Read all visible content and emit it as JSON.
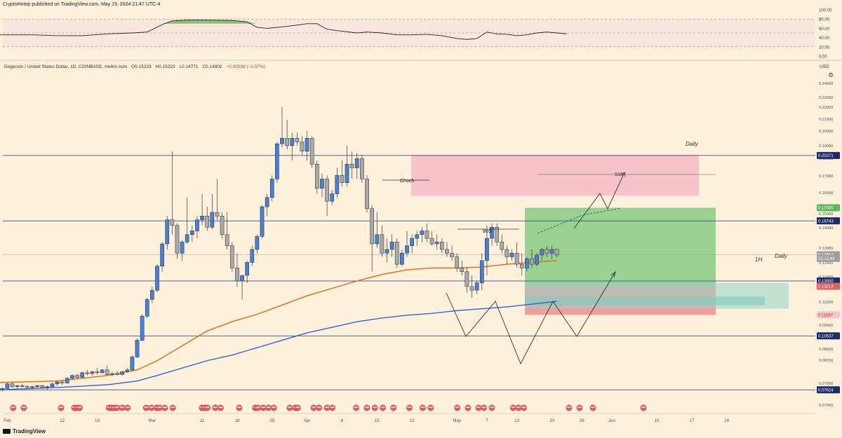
{
  "header": {
    "publisher": "CryptoHotep published on TradingView.com, May 19, 2024 21:47 UTC-4"
  },
  "symbol": {
    "name": "Dogecoin / United States Dollar, 1D, COINBASE, Heikin Ashi",
    "open": "O0.15223",
    "high": "H0.15223",
    "low": "L0.14771",
    "close": "C0.14902",
    "change": "−0.00238 (−1.57%)"
  },
  "currency": "USD",
  "brand": "TradingView",
  "colors": {
    "background": "#fef1dc",
    "up": "#4a7fd6",
    "down": "#a9a9a9",
    "ema_orange": "#e06a10",
    "ema_blue": "#2f62e0",
    "hline": "#3a4d8c",
    "supply_zone": "#f6b2c4",
    "green_box": "#6fc36f",
    "red_box": "#f08a8a",
    "teal_box": "#8fd3c9"
  },
  "chart_data": {
    "type": "candlestick",
    "subtype": "heikin-ashi",
    "ylim": [
      0.07,
      0.245
    ],
    "y_ticks": [
      "0.24000",
      "0.23000",
      "0.22000",
      "0.21000",
      "0.20000",
      "0.19000",
      "0.18000",
      "0.17000",
      "0.16000",
      "0.15000",
      "0.14000",
      "0.13000",
      "0.12400",
      "0.11600",
      "0.11200",
      "0.10200",
      "0.09800",
      "0.09400",
      "0.09000",
      "0.08600",
      "0.08250",
      "0.07900",
      "0.07300"
    ],
    "x_ticks": [
      {
        "label": "Feb",
        "day": 0
      },
      {
        "label": "12",
        "day": 11
      },
      {
        "label": "19",
        "day": 18
      },
      {
        "label": "Mar",
        "day": 29
      },
      {
        "label": "11",
        "day": 39
      },
      {
        "label": "18",
        "day": 46
      },
      {
        "label": "25",
        "day": 53
      },
      {
        "label": "Apr",
        "day": 60
      },
      {
        "label": "8",
        "day": 67
      },
      {
        "label": "15",
        "day": 74
      },
      {
        "label": "22",
        "day": 81
      },
      {
        "label": "May",
        "day": 90
      },
      {
        "label": "7",
        "day": 96
      },
      {
        "label": "13",
        "day": 102
      },
      {
        "label": "20",
        "day": 109
      },
      {
        "label": "26",
        "day": 115
      },
      {
        "label": "Jun",
        "day": 121
      },
      {
        "label": "10",
        "day": 130
      },
      {
        "label": "17",
        "day": 137
      },
      {
        "label": "24",
        "day": 144
      }
    ],
    "price_labels": [
      {
        "text": "0.20271",
        "value": 0.20271,
        "bg": "#1d2b6b"
      },
      {
        "text": "0.17450",
        "value": 0.1745,
        "bg": "#5cb85c"
      },
      {
        "text": "0.16743",
        "value": 0.16743,
        "bg": "#1d2b6b"
      },
      {
        "text": "0.14914",
        "value": 0.14914,
        "bg": "#9e9e9e"
      },
      {
        "text": "22:12:44",
        "value": 0.14714,
        "bg": "#9e9e9e"
      },
      {
        "text": "0.13500",
        "value": 0.135,
        "bg": "#1d2b6b"
      },
      {
        "text": "0.13214",
        "value": 0.13214,
        "bg": "#e06060"
      },
      {
        "text": "0.11667",
        "value": 0.11667,
        "bg": "#f3c6cc"
      },
      {
        "text": "0.10537",
        "value": 0.10537,
        "bg": "#1d2b6b"
      },
      {
        "text": "0.07624",
        "value": 0.07624,
        "bg": "#1d2b6b"
      }
    ],
    "horizontal_lines": [
      0.20271,
      0.16743,
      0.135,
      0.10537,
      0.07624
    ],
    "candles": [
      [
        -4,
        0.077,
        0.078,
        0.076,
        0.0775
      ],
      [
        -3,
        0.0775,
        0.078,
        0.076,
        0.0765
      ],
      [
        -2,
        0.0765,
        0.0775,
        0.0755,
        0.076
      ],
      [
        -1,
        0.076,
        0.0775,
        0.0755,
        0.077
      ],
      [
        0,
        0.077,
        0.08,
        0.0765,
        0.0795
      ],
      [
        1,
        0.0795,
        0.08,
        0.0775,
        0.078
      ],
      [
        2,
        0.078,
        0.079,
        0.077,
        0.0785
      ],
      [
        3,
        0.0785,
        0.0795,
        0.0775,
        0.078
      ],
      [
        4,
        0.078,
        0.079,
        0.077,
        0.0775
      ],
      [
        5,
        0.0775,
        0.0785,
        0.0765,
        0.078
      ],
      [
        6,
        0.078,
        0.079,
        0.077,
        0.0785
      ],
      [
        7,
        0.0785,
        0.079,
        0.077,
        0.0775
      ],
      [
        8,
        0.0775,
        0.0785,
        0.0765,
        0.078
      ],
      [
        9,
        0.078,
        0.08,
        0.0775,
        0.0795
      ],
      [
        10,
        0.0795,
        0.081,
        0.0785,
        0.0805
      ],
      [
        11,
        0.0805,
        0.0815,
        0.079,
        0.08
      ],
      [
        12,
        0.08,
        0.083,
        0.0795,
        0.0825
      ],
      [
        13,
        0.0825,
        0.0845,
        0.0815,
        0.084
      ],
      [
        14,
        0.084,
        0.085,
        0.082,
        0.083
      ],
      [
        15,
        0.083,
        0.086,
        0.0825,
        0.0855
      ],
      [
        16,
        0.0855,
        0.087,
        0.084,
        0.085
      ],
      [
        17,
        0.085,
        0.0865,
        0.084,
        0.086
      ],
      [
        18,
        0.086,
        0.088,
        0.0845,
        0.0855
      ],
      [
        19,
        0.0855,
        0.0875,
        0.0848,
        0.087
      ],
      [
        20,
        0.087,
        0.0895,
        0.084,
        0.0845
      ],
      [
        21,
        0.0845,
        0.086,
        0.0835,
        0.085
      ],
      [
        22,
        0.085,
        0.0865,
        0.084,
        0.0845
      ],
      [
        23,
        0.0845,
        0.0865,
        0.084,
        0.086
      ],
      [
        24,
        0.086,
        0.088,
        0.0855,
        0.087
      ],
      [
        25,
        0.087,
        0.095,
        0.0865,
        0.094
      ],
      [
        26,
        0.094,
        0.104,
        0.0935,
        0.103
      ],
      [
        27,
        0.103,
        0.117,
        0.1025,
        0.116
      ],
      [
        28,
        0.116,
        0.126,
        0.115,
        0.125
      ],
      [
        29,
        0.125,
        0.132,
        0.123,
        0.13
      ],
      [
        30,
        0.13,
        0.144,
        0.129,
        0.143
      ],
      [
        31,
        0.143,
        0.156,
        0.14,
        0.155
      ],
      [
        32,
        0.155,
        0.17,
        0.152,
        0.168
      ],
      [
        33,
        0.168,
        0.205,
        0.16,
        0.165
      ],
      [
        34,
        0.165,
        0.166,
        0.147,
        0.15
      ],
      [
        35,
        0.15,
        0.157,
        0.146,
        0.156
      ],
      [
        36,
        0.156,
        0.18,
        0.155,
        0.16
      ],
      [
        37,
        0.16,
        0.165,
        0.156,
        0.162
      ],
      [
        38,
        0.162,
        0.17,
        0.158,
        0.168
      ],
      [
        39,
        0.168,
        0.182,
        0.165,
        0.17
      ],
      [
        40,
        0.17,
        0.175,
        0.162,
        0.164
      ],
      [
        41,
        0.164,
        0.182,
        0.163,
        0.172
      ],
      [
        42,
        0.172,
        0.19,
        0.168,
        0.17
      ],
      [
        43,
        0.17,
        0.172,
        0.158,
        0.16
      ],
      [
        44,
        0.16,
        0.172,
        0.152,
        0.154
      ],
      [
        45,
        0.154,
        0.156,
        0.14,
        0.142
      ],
      [
        46,
        0.142,
        0.15,
        0.132,
        0.135
      ],
      [
        47,
        0.135,
        0.138,
        0.125,
        0.138
      ],
      [
        48,
        0.138,
        0.146,
        0.134,
        0.145
      ],
      [
        49,
        0.145,
        0.154,
        0.143,
        0.152
      ],
      [
        50,
        0.152,
        0.16,
        0.15,
        0.159
      ],
      [
        51,
        0.159,
        0.176,
        0.158,
        0.175
      ],
      [
        52,
        0.175,
        0.182,
        0.17,
        0.18
      ],
      [
        53,
        0.18,
        0.192,
        0.178,
        0.19
      ],
      [
        54,
        0.19,
        0.21,
        0.188,
        0.209
      ],
      [
        55,
        0.209,
        0.229,
        0.207,
        0.212
      ],
      [
        56,
        0.212,
        0.222,
        0.206,
        0.208
      ],
      [
        57,
        0.208,
        0.215,
        0.2,
        0.212
      ],
      [
        58,
        0.212,
        0.215,
        0.208,
        0.21
      ],
      [
        59,
        0.21,
        0.213,
        0.203,
        0.205
      ],
      [
        60,
        0.205,
        0.216,
        0.2,
        0.212
      ],
      [
        61,
        0.212,
        0.213,
        0.196,
        0.198
      ],
      [
        62,
        0.198,
        0.2,
        0.182,
        0.185
      ],
      [
        63,
        0.185,
        0.193,
        0.18,
        0.19
      ],
      [
        64,
        0.19,
        0.192,
        0.17,
        0.178
      ],
      [
        65,
        0.178,
        0.184,
        0.176,
        0.182
      ],
      [
        66,
        0.182,
        0.196,
        0.18,
        0.192
      ],
      [
        67,
        0.192,
        0.2,
        0.186,
        0.188
      ],
      [
        68,
        0.188,
        0.208,
        0.186,
        0.198
      ],
      [
        69,
        0.198,
        0.205,
        0.19,
        0.196
      ],
      [
        70,
        0.196,
        0.204,
        0.19,
        0.201
      ],
      [
        71,
        0.201,
        0.203,
        0.188,
        0.19
      ],
      [
        72,
        0.19,
        0.192,
        0.172,
        0.174
      ],
      [
        73,
        0.174,
        0.176,
        0.14,
        0.155
      ],
      [
        74,
        0.155,
        0.172,
        0.153,
        0.16
      ],
      [
        75,
        0.16,
        0.165,
        0.148,
        0.15
      ],
      [
        76,
        0.15,
        0.158,
        0.145,
        0.152
      ],
      [
        77,
        0.152,
        0.16,
        0.148,
        0.156
      ],
      [
        78,
        0.156,
        0.158,
        0.142,
        0.144
      ],
      [
        79,
        0.144,
        0.152,
        0.143,
        0.15
      ],
      [
        80,
        0.15,
        0.162,
        0.148,
        0.154
      ],
      [
        81,
        0.154,
        0.16,
        0.15,
        0.158
      ],
      [
        82,
        0.158,
        0.162,
        0.154,
        0.16
      ],
      [
        83,
        0.16,
        0.164,
        0.156,
        0.162
      ],
      [
        84,
        0.162,
        0.166,
        0.156,
        0.158
      ],
      [
        85,
        0.158,
        0.162,
        0.154,
        0.155
      ],
      [
        86,
        0.155,
        0.16,
        0.152,
        0.156
      ],
      [
        87,
        0.156,
        0.158,
        0.15,
        0.152
      ],
      [
        88,
        0.152,
        0.156,
        0.148,
        0.15
      ],
      [
        89,
        0.15,
        0.154,
        0.146,
        0.148
      ],
      [
        90,
        0.148,
        0.15,
        0.14,
        0.142
      ],
      [
        91,
        0.142,
        0.146,
        0.138,
        0.14
      ],
      [
        92,
        0.14,
        0.142,
        0.129,
        0.132
      ],
      [
        93,
        0.132,
        0.138,
        0.126,
        0.13
      ],
      [
        94,
        0.13,
        0.135,
        0.128,
        0.134
      ],
      [
        95,
        0.134,
        0.15,
        0.13,
        0.146
      ],
      [
        96,
        0.146,
        0.165,
        0.138,
        0.158
      ],
      [
        97,
        0.158,
        0.166,
        0.154,
        0.164
      ],
      [
        98,
        0.164,
        0.166,
        0.154,
        0.156
      ],
      [
        99,
        0.156,
        0.16,
        0.15,
        0.152
      ],
      [
        100,
        0.152,
        0.154,
        0.144,
        0.148
      ],
      [
        101,
        0.148,
        0.152,
        0.146,
        0.15
      ],
      [
        102,
        0.15,
        0.156,
        0.142,
        0.144
      ],
      [
        103,
        0.144,
        0.15,
        0.138,
        0.142
      ],
      [
        104,
        0.142,
        0.148,
        0.14,
        0.147
      ],
      [
        105,
        0.147,
        0.152,
        0.142,
        0.144
      ],
      [
        106,
        0.144,
        0.15,
        0.143,
        0.149
      ],
      [
        107,
        0.149,
        0.153,
        0.146,
        0.152
      ],
      [
        108,
        0.152,
        0.154,
        0.148,
        0.15
      ],
      [
        109,
        0.15,
        0.154,
        0.147,
        0.152
      ],
      [
        110,
        0.1522,
        0.1522,
        0.1477,
        0.149
      ]
    ],
    "ema_orange": [
      [
        -4,
        0.08
      ],
      [
        10,
        0.081
      ],
      [
        20,
        0.084
      ],
      [
        26,
        0.087
      ],
      [
        30,
        0.092
      ],
      [
        35,
        0.1
      ],
      [
        40,
        0.108
      ],
      [
        45,
        0.113
      ],
      [
        50,
        0.117
      ],
      [
        55,
        0.122
      ],
      [
        60,
        0.127
      ],
      [
        65,
        0.131
      ],
      [
        70,
        0.135
      ],
      [
        75,
        0.1385
      ],
      [
        80,
        0.141
      ],
      [
        85,
        0.142
      ],
      [
        90,
        0.142
      ],
      [
        95,
        0.1425
      ],
      [
        100,
        0.144
      ],
      [
        105,
        0.145
      ],
      [
        110,
        0.146
      ]
    ],
    "ema_blue": [
      [
        -4,
        0.076
      ],
      [
        10,
        0.0775
      ],
      [
        20,
        0.079
      ],
      [
        26,
        0.081
      ],
      [
        30,
        0.084
      ],
      [
        35,
        0.088
      ],
      [
        40,
        0.092
      ],
      [
        45,
        0.095
      ],
      [
        50,
        0.099
      ],
      [
        55,
        0.103
      ],
      [
        60,
        0.107
      ],
      [
        65,
        0.11
      ],
      [
        70,
        0.113
      ],
      [
        75,
        0.115
      ],
      [
        80,
        0.1165
      ],
      [
        85,
        0.1175
      ],
      [
        90,
        0.119
      ],
      [
        95,
        0.12
      ],
      [
        100,
        0.121
      ],
      [
        105,
        0.1225
      ],
      [
        110,
        0.124
      ]
    ],
    "annotations": [
      "Choch",
      "BoS",
      "SSS",
      "Daily",
      "1H",
      "Daily"
    ],
    "rsi": {
      "y_ticks": [
        "100.00",
        "80.00",
        "60.00",
        "40.00",
        "20.00",
        "0.00"
      ],
      "levels": [
        80,
        50,
        20
      ],
      "values": [
        [
          -4,
          46
        ],
        [
          5,
          46
        ],
        [
          10,
          44
        ],
        [
          15,
          44
        ],
        [
          20,
          48
        ],
        [
          25,
          50
        ],
        [
          28,
          52
        ],
        [
          31,
          68
        ],
        [
          33,
          76
        ],
        [
          36,
          78
        ],
        [
          40,
          78
        ],
        [
          45,
          77
        ],
        [
          48,
          74
        ],
        [
          50,
          62
        ],
        [
          52,
          60
        ],
        [
          55,
          63
        ],
        [
          58,
          67
        ],
        [
          60,
          70
        ],
        [
          62,
          70
        ],
        [
          64,
          58
        ],
        [
          66,
          55
        ],
        [
          70,
          50
        ],
        [
          72,
          52
        ],
        [
          75,
          50
        ],
        [
          78,
          46
        ],
        [
          81,
          46
        ],
        [
          84,
          47
        ],
        [
          87,
          44
        ],
        [
          90,
          38
        ],
        [
          92,
          36
        ],
        [
          94,
          38
        ],
        [
          96,
          52
        ],
        [
          98,
          48
        ],
        [
          100,
          47
        ],
        [
          102,
          44
        ],
        [
          104,
          46
        ],
        [
          106,
          50
        ],
        [
          108,
          52
        ],
        [
          110,
          50
        ],
        [
          112,
          48
        ]
      ]
    }
  }
}
